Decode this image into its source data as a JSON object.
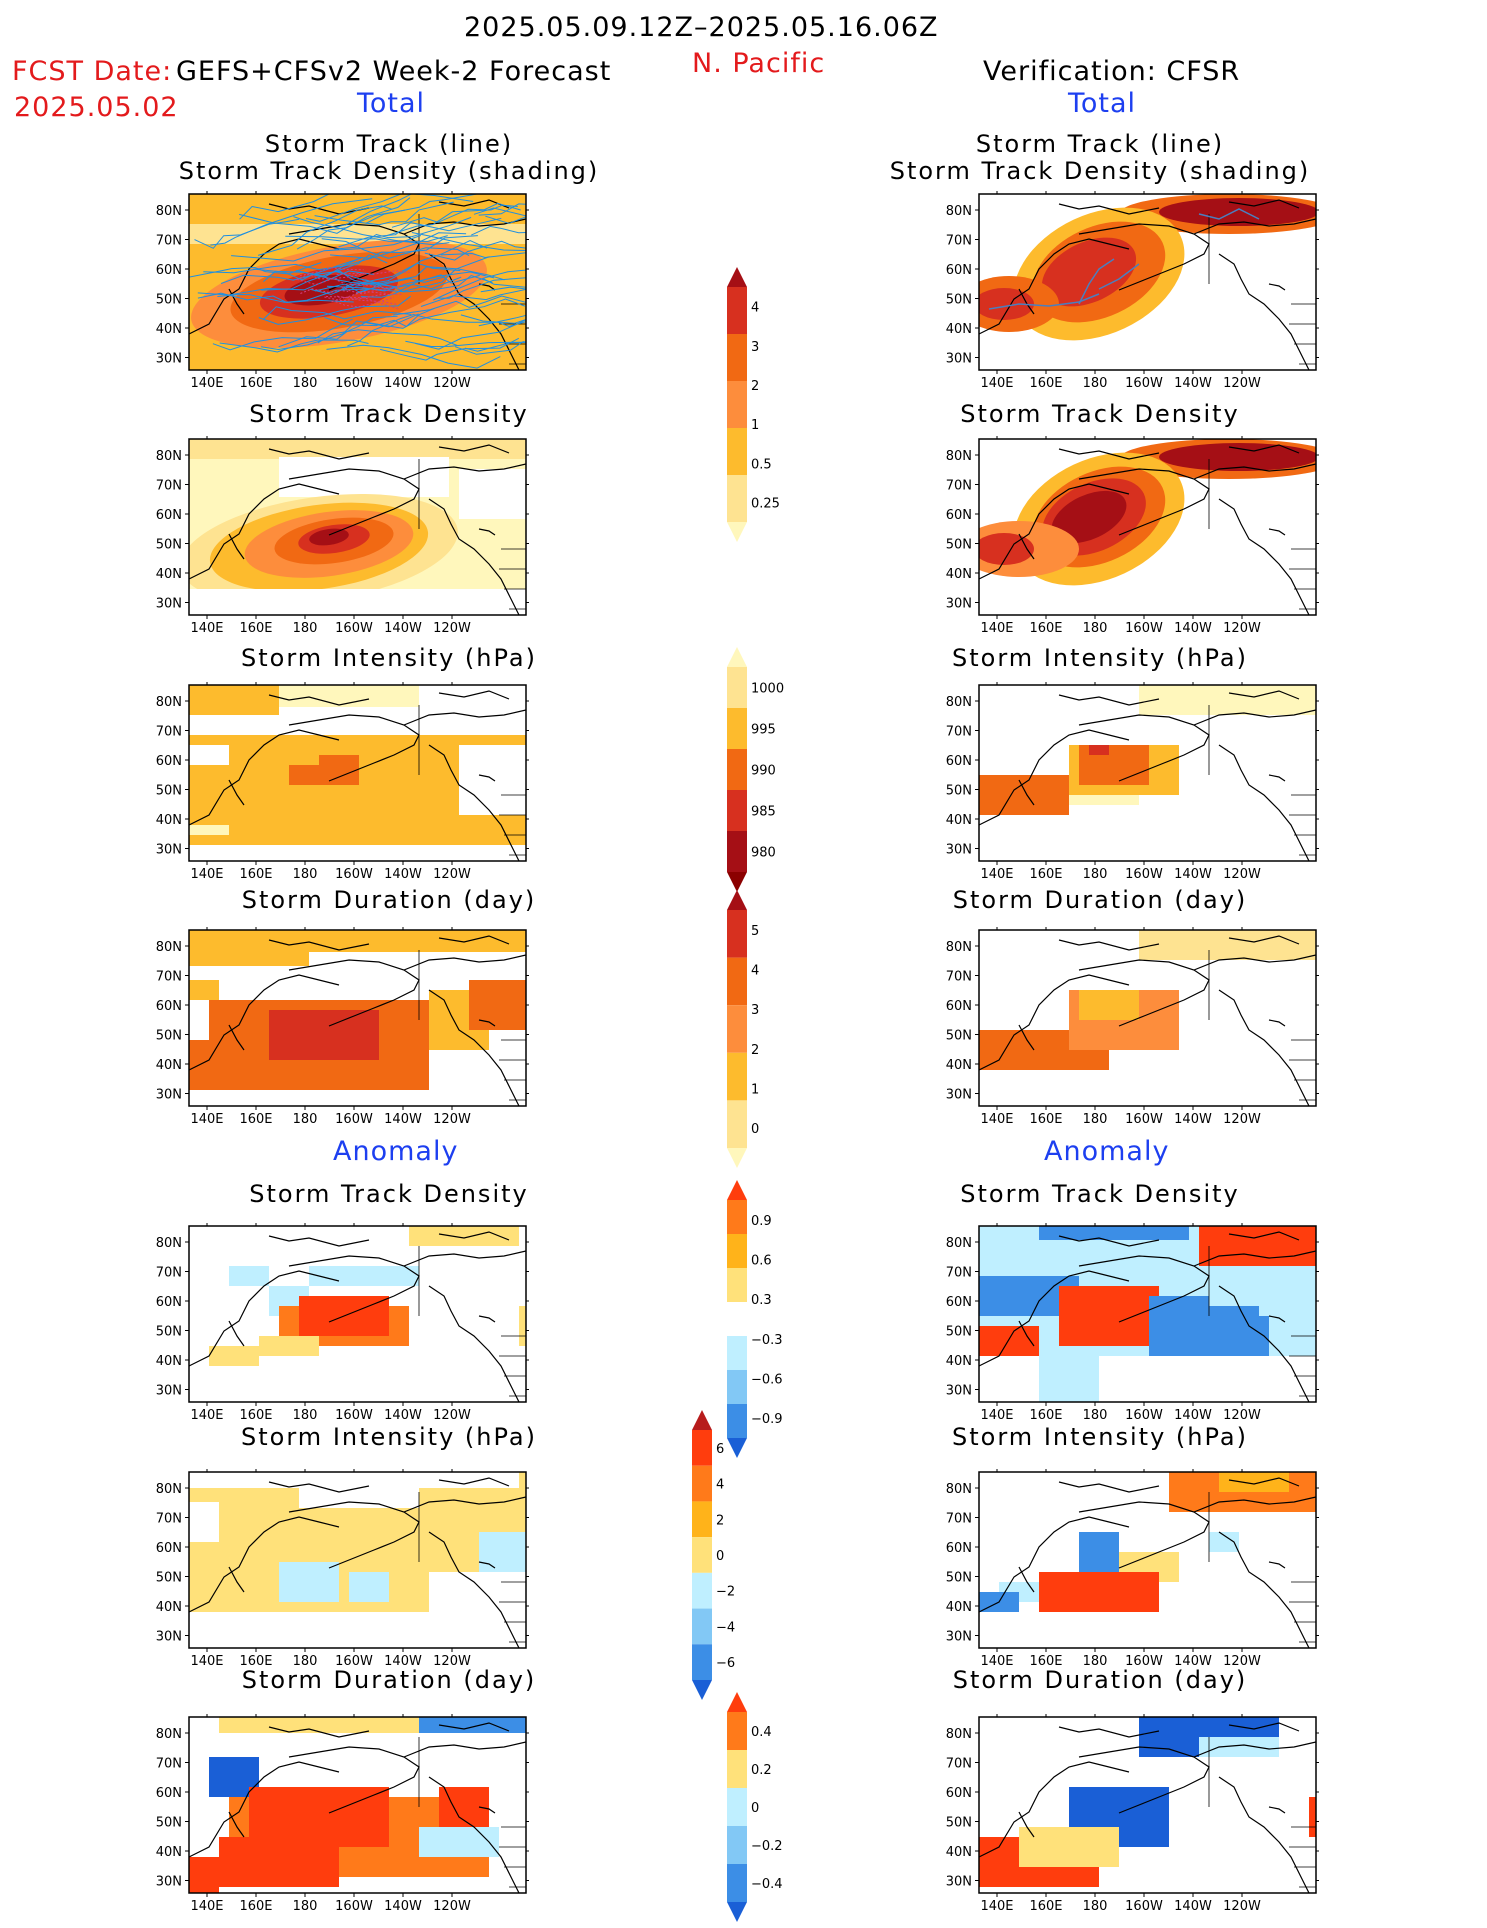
{
  "header": {
    "date_range": "2025.05.09.12Z–2025.05.16.06Z",
    "fcst_label": "FCST Date:",
    "model": "GEFS+CFSv2 Week-2 Forecast",
    "fcst_date": "2025.05.02",
    "region": "N. Pacific",
    "verification": "Verification: CFSR",
    "left_total": "Total",
    "right_total": "Total",
    "left_anomaly": "Anomaly",
    "right_anomaly": "Anomaly"
  },
  "axes": {
    "lon_labels": [
      "140E",
      "160E",
      "180",
      "160W",
      "140W",
      "120W"
    ],
    "lat_labels": [
      "80N",
      "70N",
      "60N",
      "50N",
      "40N",
      "30N"
    ]
  },
  "panels": {
    "left": [
      {
        "title1": "Storm Track (line)",
        "title2": "Storm Track Density (shading)"
      },
      {
        "title1": "Storm Track Density"
      },
      {
        "title1": "Storm Intensity (hPa)"
      },
      {
        "title1": "Storm Duration (day)"
      },
      {
        "title1": "Storm Track Density"
      },
      {
        "title1": "Storm Intensity (hPa)"
      },
      {
        "title1": "Storm Duration (day)"
      }
    ],
    "right": [
      {
        "title1": "Storm Track (line)",
        "title2": "Storm Track Density (shading)"
      },
      {
        "title1": "Storm Track Density"
      },
      {
        "title1": "Storm Intensity (hPa)"
      },
      {
        "title1": "Storm Duration (day)"
      },
      {
        "title1": "Storm Track Density"
      },
      {
        "title1": "Storm Intensity (hPa)"
      },
      {
        "title1": "Storm Duration (day)"
      }
    ]
  },
  "colorbars": [
    {
      "labels": [
        "4",
        "3",
        "2",
        "1",
        "0.5",
        "0.25"
      ],
      "colors": [
        "#a50f15",
        "#d7301f",
        "#f16913",
        "#fd8d3c",
        "#fdbb2d",
        "#fee391",
        "#fff7bc"
      ]
    },
    {
      "labels": [
        "1000",
        "995",
        "990",
        "985",
        "980"
      ],
      "colors": [
        "#fff7bc",
        "#fee391",
        "#fdbb2d",
        "#f16913",
        "#d7301f",
        "#a50f15",
        "#8b0000"
      ]
    },
    {
      "labels": [
        "5",
        "4",
        "3",
        "2",
        "1",
        "0"
      ],
      "colors": [
        "#a50f15",
        "#d7301f",
        "#f16913",
        "#fd8d3c",
        "#fdbb2d",
        "#fee391",
        "#fff7bc"
      ]
    },
    {
      "labels": [
        "0.9",
        "0.6",
        "0.3",
        "−0.3",
        "−0.6",
        "−0.9"
      ],
      "colors": [
        "#ff3d0d",
        "#ff7a1a",
        "#ffb31a",
        "#ffe17a",
        "#ffffff",
        "#bfefff",
        "#82c8f5",
        "#3c8ee6",
        "#1a5fd6"
      ]
    },
    {
      "labels": [
        "6",
        "4",
        "2",
        "0",
        "−2",
        "−4",
        "−6"
      ],
      "colors": [
        "#b71c1c",
        "#ff3d0d",
        "#ff7a1a",
        "#ffb31a",
        "#ffe17a",
        "#bfefff",
        "#82c8f5",
        "#3c8ee6",
        "#1a5fd6"
      ]
    },
    {
      "labels": [
        "0.4",
        "0.2",
        "0",
        "−0.2",
        "−0.4"
      ],
      "colors": [
        "#ff3d0d",
        "#ff7a1a",
        "#ffe17a",
        "#bfefff",
        "#82c8f5",
        "#3c8ee6",
        "#1a5fd6"
      ]
    }
  ]
}
